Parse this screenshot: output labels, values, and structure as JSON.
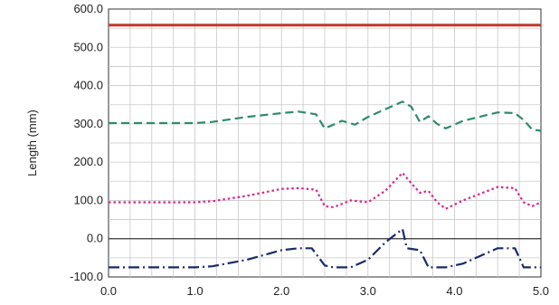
{
  "chart_data": {
    "type": "line",
    "title": "",
    "xlabel": "",
    "ylabel": "Length (mm)",
    "xlim": [
      0,
      5
    ],
    "ylim": [
      -100,
      600
    ],
    "x_ticks": [
      "0.0",
      "1.0",
      "2.0",
      "3.0",
      "4.0",
      "5.0"
    ],
    "y_ticks": [
      "-100.0",
      "0.0",
      "100.0",
      "200.0",
      "300.0",
      "400.0",
      "500.0",
      "600.0"
    ],
    "grid": true,
    "zero_line": true,
    "series": [
      {
        "style": "solid",
        "color": "#c0392b",
        "x": [
          0,
          5
        ],
        "y": [
          558,
          558
        ]
      },
      {
        "style": "dashed",
        "color": "#2e8b6e",
        "x": [
          0,
          0.5,
          1.0,
          1.2,
          1.6,
          2.0,
          2.2,
          2.4,
          2.5,
          2.7,
          2.85,
          3.0,
          3.4,
          3.5,
          3.6,
          3.7,
          3.8,
          3.9,
          4.1,
          4.5,
          4.7,
          4.8,
          4.9,
          5.0
        ],
        "y": [
          302,
          302,
          302,
          305,
          318,
          328,
          332,
          325,
          288,
          308,
          298,
          318,
          358,
          345,
          305,
          320,
          300,
          288,
          308,
          330,
          328,
          310,
          285,
          282
        ]
      },
      {
        "style": "dotted",
        "color": "#e0208a",
        "x": [
          0,
          0.5,
          1.0,
          1.2,
          1.6,
          2.0,
          2.2,
          2.4,
          2.5,
          2.6,
          2.8,
          3.0,
          3.2,
          3.4,
          3.5,
          3.6,
          3.7,
          3.8,
          3.9,
          4.1,
          4.5,
          4.7,
          4.8,
          4.9,
          5.0
        ],
        "y": [
          95,
          95,
          95,
          98,
          112,
          130,
          132,
          128,
          85,
          82,
          100,
          95,
          125,
          172,
          145,
          120,
          125,
          95,
          78,
          100,
          135,
          132,
          95,
          85,
          95
        ]
      },
      {
        "style": "dashdot",
        "color": "#1a2a6b",
        "x": [
          0,
          0.5,
          1.0,
          1.2,
          1.6,
          2.0,
          2.2,
          2.35,
          2.5,
          2.6,
          2.8,
          3.0,
          3.2,
          3.4,
          3.45,
          3.6,
          3.7,
          3.9,
          4.1,
          4.5,
          4.7,
          4.8,
          5.0
        ],
        "y": [
          -75,
          -75,
          -75,
          -72,
          -55,
          -30,
          -25,
          -25,
          -70,
          -75,
          -75,
          -55,
          -10,
          25,
          -25,
          -30,
          -75,
          -75,
          -65,
          -25,
          -25,
          -75,
          -75
        ]
      }
    ]
  }
}
